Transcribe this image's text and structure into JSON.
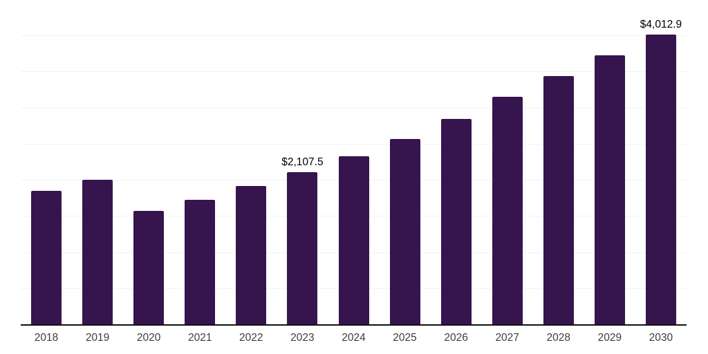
{
  "chart_data": {
    "type": "bar",
    "title": "",
    "xlabel": "",
    "ylabel": "",
    "categories": [
      "2018",
      "2019",
      "2020",
      "2021",
      "2022",
      "2023",
      "2024",
      "2025",
      "2026",
      "2027",
      "2028",
      "2029",
      "2030"
    ],
    "values": [
      1845,
      2000,
      1570,
      1720,
      1915,
      2107.5,
      2325,
      2565,
      2845,
      3150,
      3437,
      3725,
      4012.9
    ],
    "data_labels": [
      {
        "category": "2023",
        "text": "$2,107.5"
      },
      {
        "category": "2030",
        "text": "$4,012.9"
      }
    ],
    "ylim": [
      0,
      4500
    ],
    "gridline_step": 500,
    "grid": "horizontal-only",
    "y_tick_labels_shown": false,
    "legend": "none",
    "colors": {
      "bar": "#36154e",
      "gridline": "#f2f2f2",
      "axis_line": "#111111",
      "tick_label": "#3d3d3d",
      "data_label": "#000000",
      "background": "#ffffff"
    }
  }
}
